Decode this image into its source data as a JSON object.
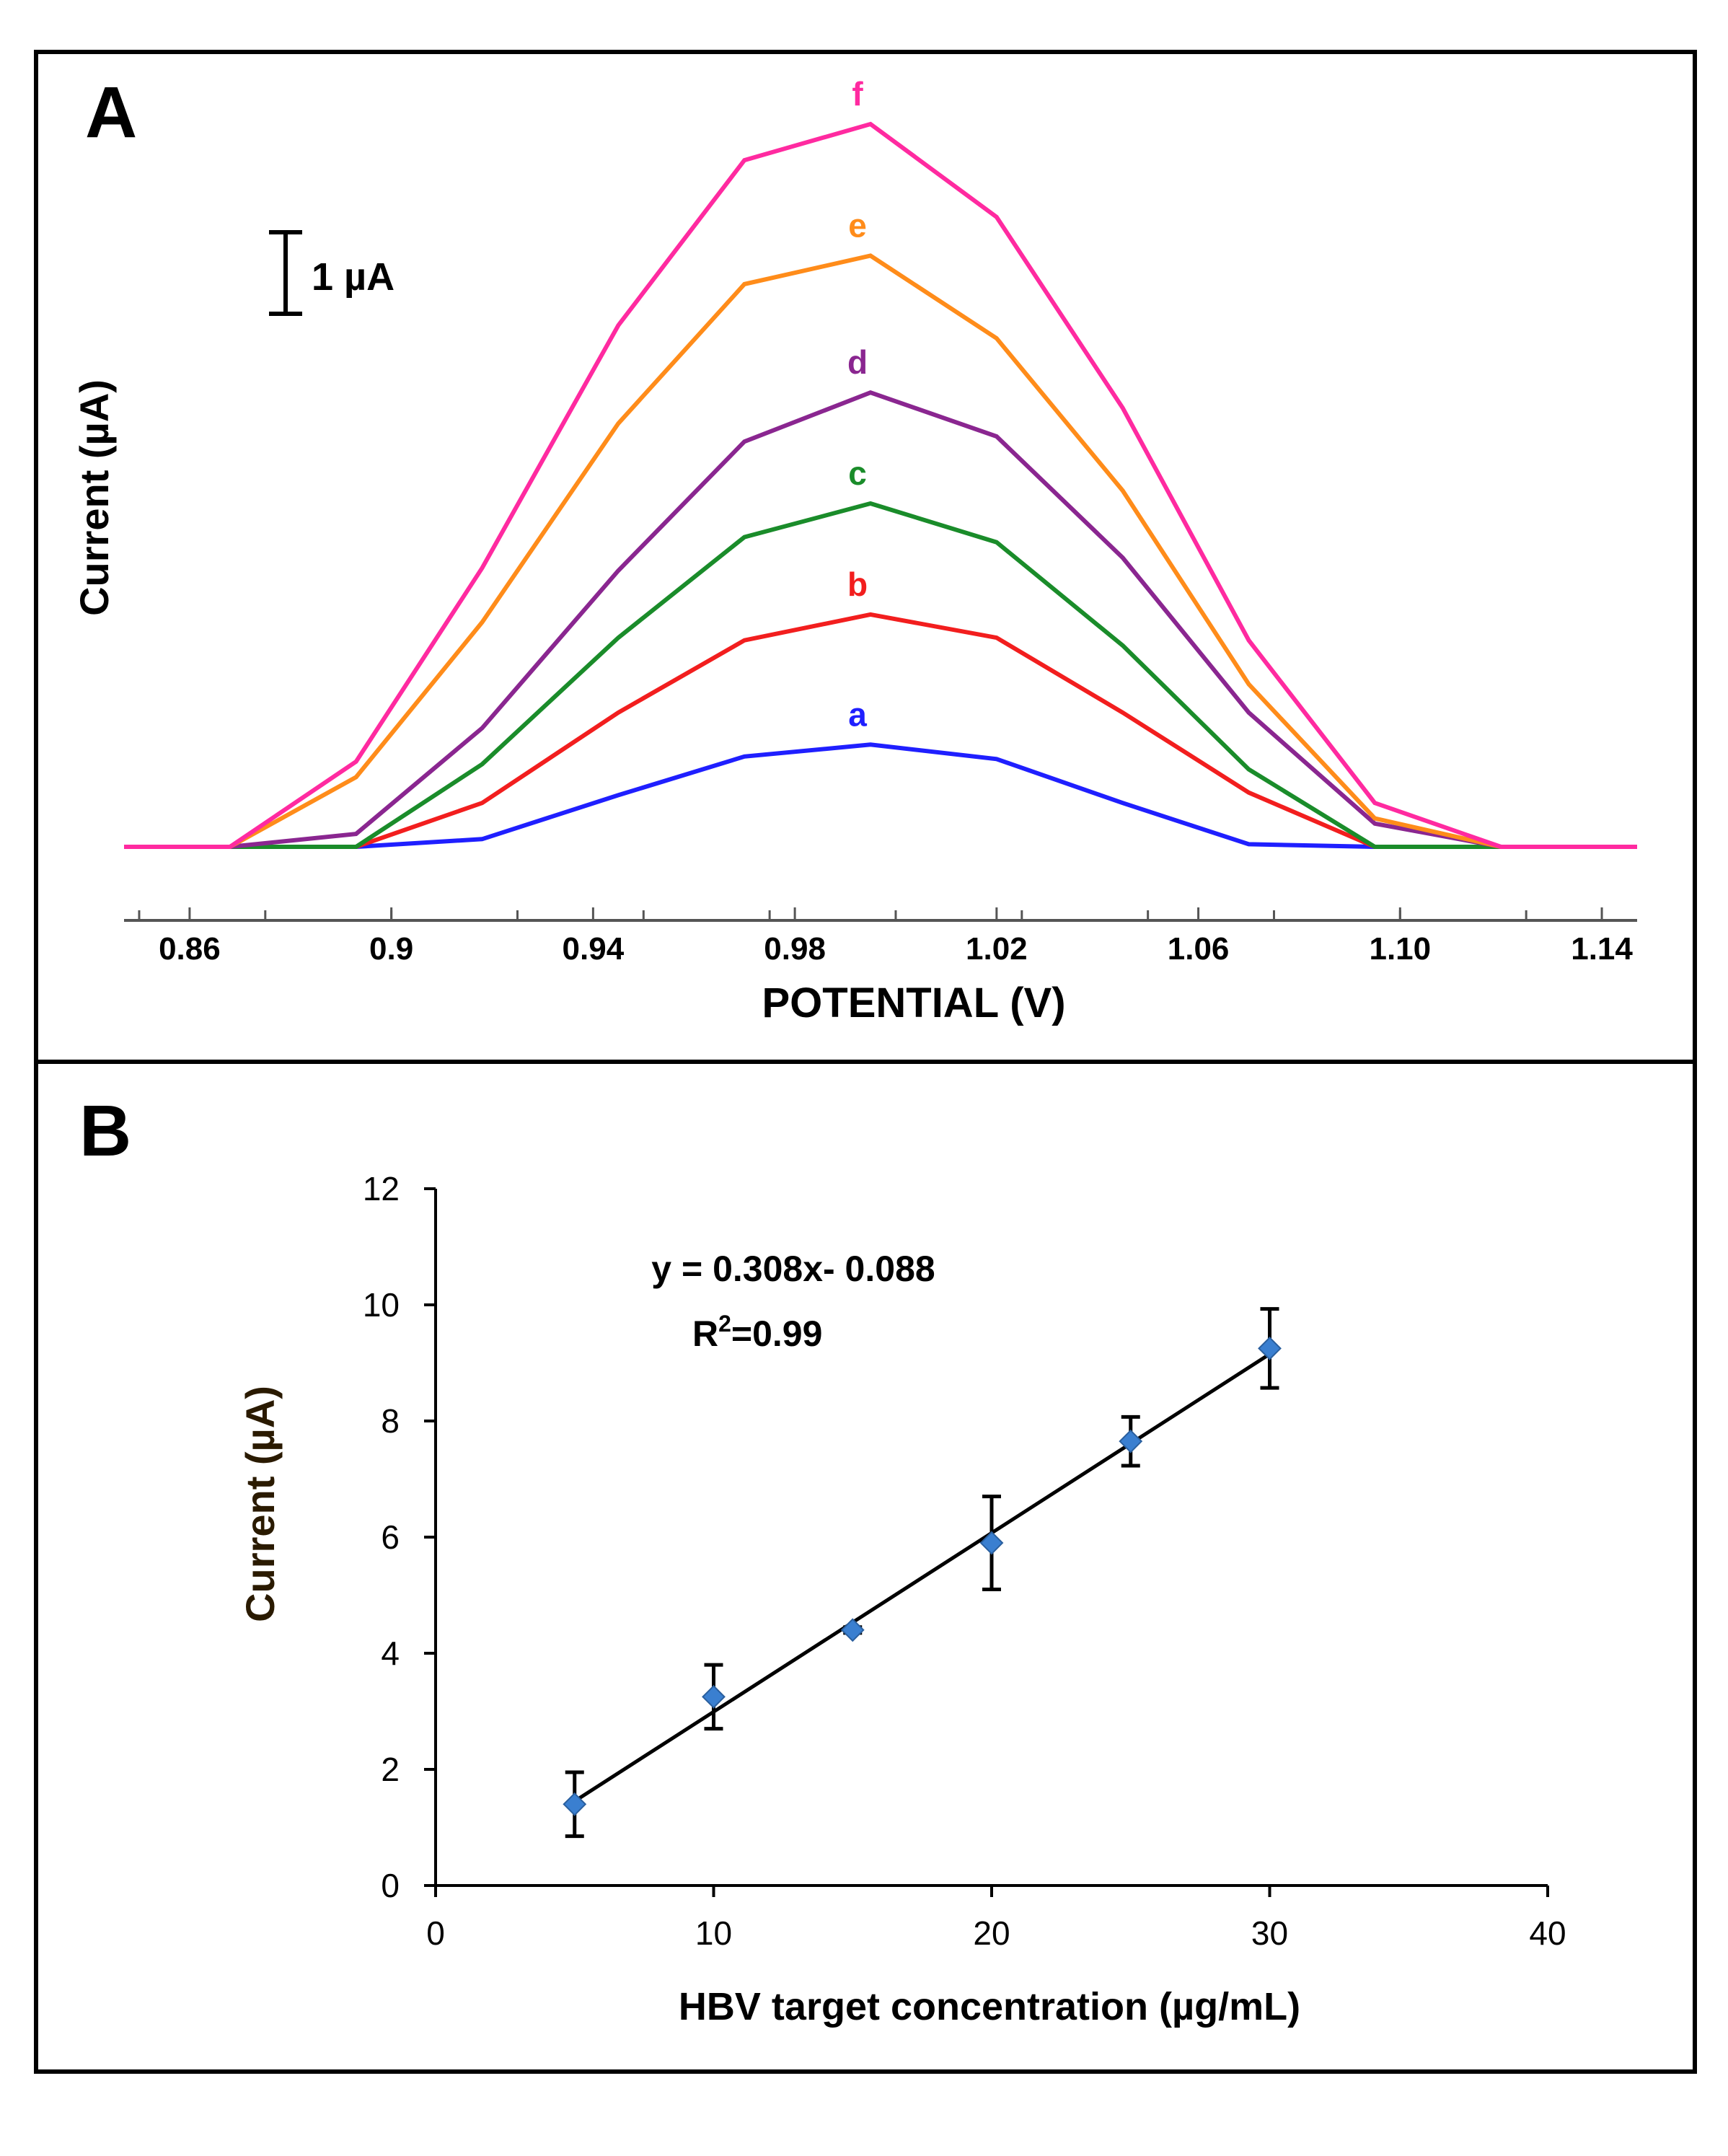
{
  "colors": {
    "frame": "#000000",
    "a": "#1f1fff",
    "b": "#f21e1e",
    "c": "#1a8c2a",
    "d": "#8a2690",
    "e": "#ff8c1a",
    "f": "#ff2aa0",
    "ylabel_b": "#2a1a00",
    "marker": "#3a7fd0"
  },
  "chart_data": [
    {
      "panel": "A",
      "type": "line",
      "panel_label": "A",
      "xlabel": "POTENTIAL (V)",
      "ylabel": "Current (µA)",
      "scale_bar_label": "1 µA",
      "scale_bar_value": 1,
      "xlim": [
        0.847,
        1.147
      ],
      "ylim": [
        -1.2,
        13.2
      ],
      "xticks": [
        "0.86",
        "0.9",
        "0.94",
        "0.98",
        "1.02",
        "1.06",
        "1.10",
        "1.14"
      ],
      "xtick_values": [
        0.86,
        0.9,
        0.94,
        0.98,
        1.02,
        1.06,
        1.1,
        1.14
      ],
      "series": [
        {
          "name": "a",
          "label": "a",
          "color_key": "a",
          "x": [
            0.847,
            0.868,
            0.893,
            0.918,
            0.945,
            0.97,
            0.995,
            1.02,
            1.045,
            1.07,
            1.095,
            1.12,
            1.147
          ],
          "y": [
            0.0,
            0.0,
            0.0,
            0.15,
            1.0,
            1.75,
            1.98,
            1.7,
            0.85,
            0.05,
            0.0,
            0.0,
            0.0
          ]
        },
        {
          "name": "b",
          "label": "b",
          "color_key": "b",
          "x": [
            0.847,
            0.868,
            0.893,
            0.918,
            0.945,
            0.97,
            0.995,
            1.02,
            1.045,
            1.07,
            1.095,
            1.12,
            1.147
          ],
          "y": [
            0.0,
            0.0,
            0.0,
            0.85,
            2.6,
            4.0,
            4.5,
            4.05,
            2.6,
            1.05,
            0.0,
            0.0,
            0.0
          ]
        },
        {
          "name": "c",
          "label": "c",
          "color_key": "c",
          "x": [
            0.847,
            0.868,
            0.893,
            0.918,
            0.945,
            0.97,
            0.995,
            1.02,
            1.045,
            1.07,
            1.095,
            1.12,
            1.147
          ],
          "y": [
            0.0,
            0.0,
            0.0,
            1.6,
            4.05,
            6.0,
            6.65,
            5.9,
            3.9,
            1.5,
            0.0,
            0.0,
            0.0
          ]
        },
        {
          "name": "d",
          "label": "d",
          "color_key": "d",
          "x": [
            0.847,
            0.868,
            0.893,
            0.918,
            0.945,
            0.97,
            0.995,
            1.02,
            1.045,
            1.07,
            1.095,
            1.12,
            1.147
          ],
          "y": [
            0.0,
            0.0,
            0.25,
            2.3,
            5.35,
            7.85,
            8.8,
            7.95,
            5.6,
            2.6,
            0.45,
            0.0,
            0.0
          ]
        },
        {
          "name": "e",
          "label": "e",
          "color_key": "e",
          "x": [
            0.847,
            0.868,
            0.893,
            0.918,
            0.945,
            0.97,
            0.995,
            1.02,
            1.045,
            1.07,
            1.095,
            1.12,
            1.147
          ],
          "y": [
            0.0,
            0.0,
            1.35,
            4.35,
            8.2,
            10.9,
            11.45,
            9.85,
            6.9,
            3.15,
            0.55,
            0.0,
            0.0
          ]
        },
        {
          "name": "f",
          "label": "f",
          "color_key": "f",
          "x": [
            0.847,
            0.868,
            0.893,
            0.918,
            0.945,
            0.97,
            0.995,
            1.02,
            1.045,
            1.07,
            1.095,
            1.12,
            1.147
          ],
          "y": [
            0.0,
            0.0,
            1.65,
            5.4,
            10.1,
            13.3,
            14.0,
            12.2,
            8.5,
            4.0,
            0.85,
            0.0,
            0.0
          ]
        }
      ]
    },
    {
      "panel": "B",
      "type": "scatter",
      "panel_label": "B",
      "xlabel": "HBV target concentration (µg/mL)",
      "ylabel": "Current (µA)",
      "xlim": [
        0,
        40
      ],
      "ylim": [
        0,
        12
      ],
      "xticks": [
        "0",
        "10",
        "20",
        "30",
        "40"
      ],
      "xtick_values": [
        0,
        10,
        20,
        30,
        40
      ],
      "yticks": [
        "0",
        "2",
        "4",
        "6",
        "8",
        "10",
        "12"
      ],
      "ytick_values": [
        0,
        2,
        4,
        6,
        8,
        10,
        12
      ],
      "points": {
        "x": [
          5,
          10,
          15,
          20,
          25,
          30
        ],
        "y": [
          1.4,
          3.25,
          4.4,
          5.9,
          7.65,
          9.25
        ],
        "error": [
          0.55,
          0.55,
          0.05,
          0.8,
          0.42,
          0.68
        ]
      },
      "fit": {
        "slope": 0.308,
        "intercept": -0.088,
        "x_range": [
          5,
          30
        ]
      },
      "equation": "y = 0.308x- 0.088",
      "r2_prefix": "R",
      "r2_sup": "2",
      "r2_value": "=0.99"
    }
  ]
}
